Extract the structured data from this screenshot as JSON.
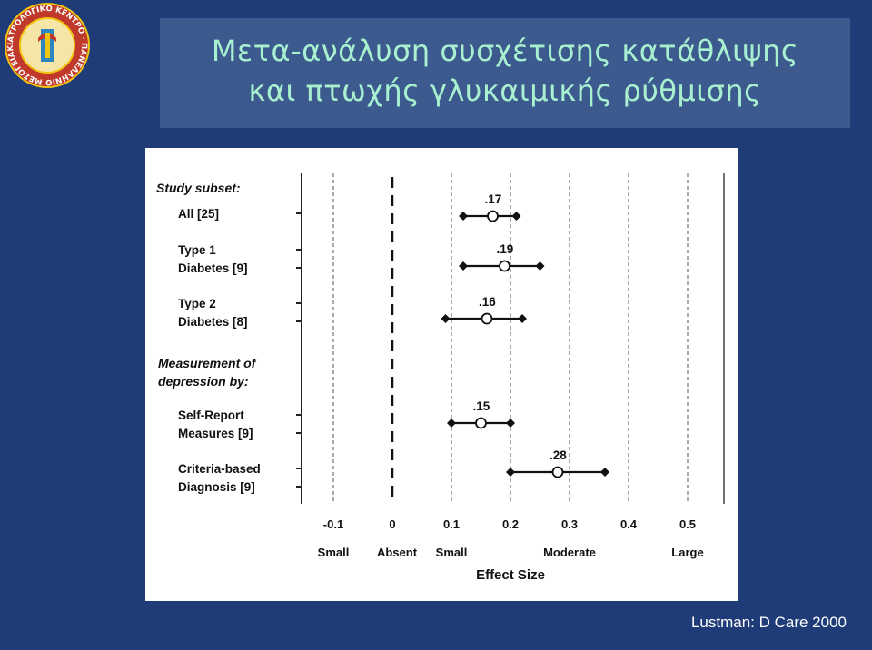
{
  "slide": {
    "title_line1": "Μετα-ανάλυση συσχέτισης κατάθλιψης",
    "title_line2": "και πτωχής γλυκαιμικής ρύθμισης",
    "citation": "Lustman: D Care 2000",
    "background_color": "#1f3c78",
    "title_color": "#a8f0d0"
  },
  "logo": {
    "icon": "medical-association-seal-icon",
    "ring_text": "ΙΑΤΡΟΛΟΓΙΚΟ ΚΕΝΤΡΟ · ΠΑΝΕΛΛΗΝΙΟ ΜΕΣΟΓΕΙΑΚΟ ·"
  },
  "chart_data": {
    "type": "forest",
    "section_headers": [
      "Study subset:",
      "Measurement of depression by:"
    ],
    "rows": [
      {
        "label_lines": [
          "All  [25]"
        ],
        "estimate": 0.17,
        "ci": [
          0.12,
          0.21
        ],
        "estimate_label": ".17"
      },
      {
        "label_lines": [
          "Type 1",
          "Diabetes  [9]"
        ],
        "estimate": 0.19,
        "ci": [
          0.12,
          0.25
        ],
        "estimate_label": ".19"
      },
      {
        "label_lines": [
          "Type 2",
          "Diabetes  [8]"
        ],
        "estimate": 0.16,
        "ci": [
          0.09,
          0.22
        ],
        "estimate_label": ".16"
      },
      {
        "label_lines": [
          "Self-Report",
          "Measures  [9]"
        ],
        "estimate": 0.15,
        "ci": [
          0.1,
          0.2
        ],
        "estimate_label": ".15"
      },
      {
        "label_lines": [
          "Criteria-based",
          "Diagnosis  [9]"
        ],
        "estimate": 0.28,
        "ci": [
          0.2,
          0.36
        ],
        "estimate_label": ".28"
      }
    ],
    "x_ticks": [
      -0.1,
      0,
      0.1,
      0.2,
      0.3,
      0.4,
      0.5
    ],
    "x_tick_labels": [
      "-0.1",
      "0",
      "0.1",
      "0.2",
      "0.3",
      "0.4",
      "0.5"
    ],
    "x_category_labels": [
      {
        "x": -0.1,
        "text": "Small"
      },
      {
        "x": 0,
        "text": "Absent"
      },
      {
        "x": 0.1,
        "text": "Small"
      },
      {
        "x": 0.3,
        "text": "Moderate"
      },
      {
        "x": 0.5,
        "text": "Large"
      }
    ],
    "xlabel": "Effect Size",
    "xlim": [
      -0.15,
      0.55
    ],
    "reference_line": 0,
    "grid": true
  }
}
